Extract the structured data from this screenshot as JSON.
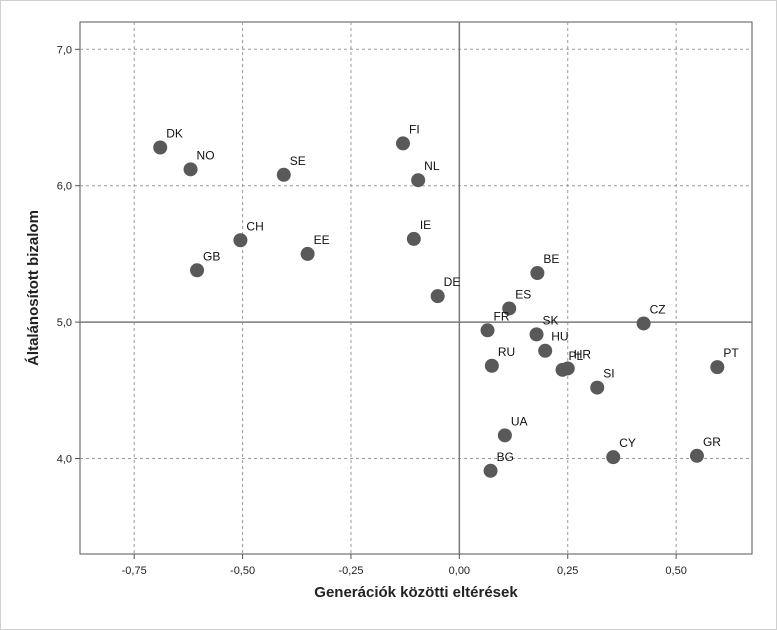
{
  "chart_data": {
    "type": "scatter",
    "title": "",
    "xlabel": "Generációk közötti eltérések",
    "ylabel": "Általánosított bizalom",
    "xlim": [
      -0.875,
      0.675
    ],
    "ylim": [
      3.3,
      7.2
    ],
    "x_ticks": [
      "-0,75",
      "-0,50",
      "-0,25",
      "0,00",
      "0,25",
      "0,50"
    ],
    "y_ticks": [
      "4,0",
      "5,0",
      "6,0",
      "7,0"
    ],
    "reference_lines": {
      "x": 0.0,
      "y": 5.0
    },
    "grid": true,
    "point_color": "#595959",
    "points": [
      {
        "label": "DK",
        "x": -0.69,
        "y": 6.28
      },
      {
        "label": "NO",
        "x": -0.62,
        "y": 6.12
      },
      {
        "label": "SE",
        "x": -0.405,
        "y": 6.08
      },
      {
        "label": "FI",
        "x": -0.13,
        "y": 6.31
      },
      {
        "label": "NL",
        "x": -0.095,
        "y": 6.04
      },
      {
        "label": "CH",
        "x": -0.505,
        "y": 5.6
      },
      {
        "label": "GB",
        "x": -0.605,
        "y": 5.38
      },
      {
        "label": "EE",
        "x": -0.35,
        "y": 5.5
      },
      {
        "label": "IE",
        "x": -0.105,
        "y": 5.61
      },
      {
        "label": "DE",
        "x": -0.05,
        "y": 5.19
      },
      {
        "label": "BE",
        "x": 0.18,
        "y": 5.36
      },
      {
        "label": "ES",
        "x": 0.115,
        "y": 5.1
      },
      {
        "label": "FR",
        "x": 0.065,
        "y": 4.94
      },
      {
        "label": "SK",
        "x": 0.178,
        "y": 4.91
      },
      {
        "label": "HU",
        "x": 0.198,
        "y": 4.79
      },
      {
        "label": "CZ",
        "x": 0.425,
        "y": 4.99
      },
      {
        "label": "RU",
        "x": 0.075,
        "y": 4.68
      },
      {
        "label": "HR",
        "x": 0.25,
        "y": 4.66
      },
      {
        "label": "PL",
        "x": 0.238,
        "y": 4.65
      },
      {
        "label": "SI",
        "x": 0.318,
        "y": 4.52
      },
      {
        "label": "PT",
        "x": 0.595,
        "y": 4.67
      },
      {
        "label": "UA",
        "x": 0.105,
        "y": 4.17
      },
      {
        "label": "CY",
        "x": 0.355,
        "y": 4.01
      },
      {
        "label": "GR",
        "x": 0.548,
        "y": 4.02
      },
      {
        "label": "BG",
        "x": 0.072,
        "y": 3.91
      }
    ]
  }
}
